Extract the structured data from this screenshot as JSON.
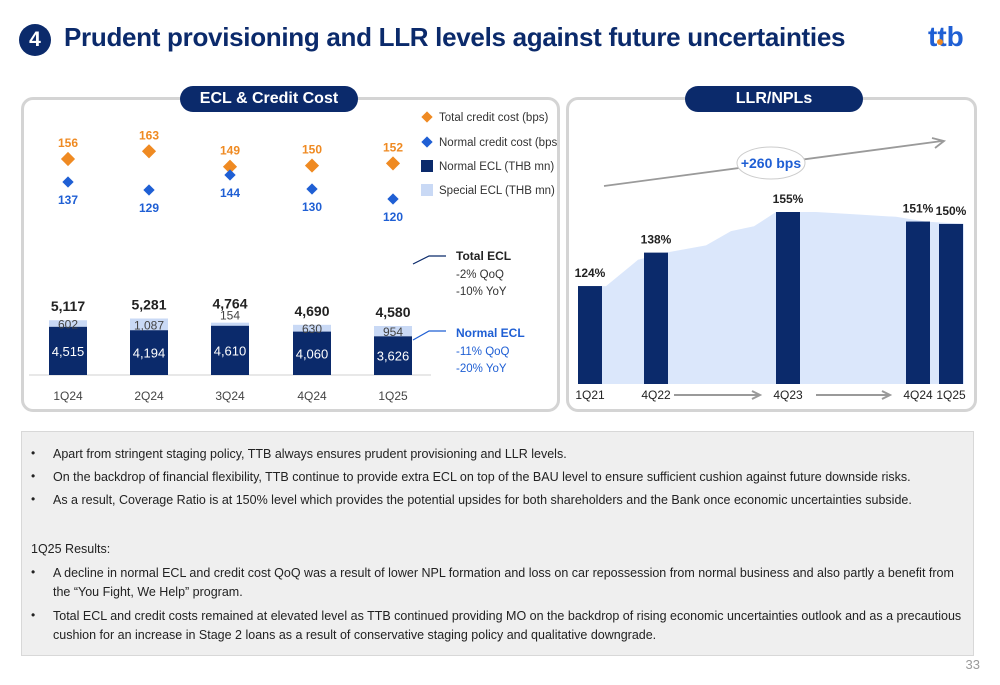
{
  "header": {
    "section_number": "4",
    "title": "Prudent provisioning and LLR levels against future uncertainties",
    "logo_text": "ttb"
  },
  "colors": {
    "navy": "#0b2a6b",
    "light_blue": "#c9d9f5",
    "orange": "#ef8a22",
    "bright_blue": "#1f5fd4",
    "area_blue": "#dbe7fb"
  },
  "chart_data": [
    {
      "type": "bar",
      "title": "ECL & Credit Cost",
      "categories": [
        "1Q24",
        "2Q24",
        "3Q24",
        "4Q24",
        "1Q25"
      ],
      "series": [
        {
          "name": "Normal ECL (THB mn)",
          "values": [
            4515,
            4194,
            4610,
            4060,
            3626
          ],
          "value_labels": [
            "4,515",
            "4,194",
            "4,610",
            "4,060",
            "3,626"
          ]
        },
        {
          "name": "Special ECL (THB mn)",
          "values": [
            602,
            1087,
            154,
            630,
            954
          ],
          "value_labels": [
            "602",
            "1,087",
            "154",
            "630",
            "954"
          ]
        },
        {
          "name": "Total credit cost (bps)",
          "values": [
            156,
            163,
            149,
            150,
            152
          ]
        },
        {
          "name": "Normal credit cost (bps)",
          "values": [
            137,
            129,
            144,
            130,
            120
          ]
        }
      ],
      "totals": [
        5117,
        5281,
        4764,
        4690,
        4580
      ],
      "total_labels": [
        "5,117",
        "5,281",
        "4,764",
        "4,690",
        "4,580"
      ],
      "annotations": {
        "total_ecl": {
          "title": "Total ECL",
          "lines": [
            "-2% QoQ",
            "-10% YoY"
          ]
        },
        "normal_ecl": {
          "title": "Normal ECL",
          "lines": [
            "-11% QoQ",
            "-20% YoY"
          ]
        }
      },
      "legend": [
        "Total credit cost (bps)",
        "Normal credit cost (bps)",
        "Normal ECL (THB mn)",
        "Special ECL (THB mn)"
      ],
      "legend_position": "top-right"
    },
    {
      "type": "bar",
      "title": "LLR/NPLs",
      "categories": [
        "1Q21",
        "4Q22",
        "4Q23",
        "4Q24",
        "1Q25"
      ],
      "values": [
        124,
        138,
        155,
        151,
        150
      ],
      "value_labels": [
        "124%",
        "138%",
        "155%",
        "151%",
        "150%"
      ],
      "annotation": "+260 bps",
      "background_area": true
    }
  ],
  "bullets_top": [
    "Apart from stringent staging policy, TTB always ensures prudent provisioning and LLR levels.",
    "On the backdrop of financial flexibility, TTB continue to provide extra ECL on top of the BAU level to ensure sufficient cushion against future downside risks.",
    "As a result, Coverage Ratio is at 150% level which provides the potential upsides for both shareholders and the Bank once economic uncertainties subside."
  ],
  "results_heading": "1Q25 Results:",
  "bullets_results": [
    {
      "line1": "A decline in normal ECL and credit cost QoQ was a result of lower NPL formation and loss on car repossession from normal business and also partly a benefit from",
      "line2": "the “You Fight, We Help” program."
    },
    {
      "line1": "Total ECL and credit costs remained at elevated level as TTB continued providing MO on the backdrop of rising economic uncertainties outlook and as a precautious",
      "line2": "cushion for an increase in Stage 2 loans as a result of conservative staging policy and qualitative downgrade."
    }
  ],
  "bullet_char": "•",
  "page_number": "33"
}
